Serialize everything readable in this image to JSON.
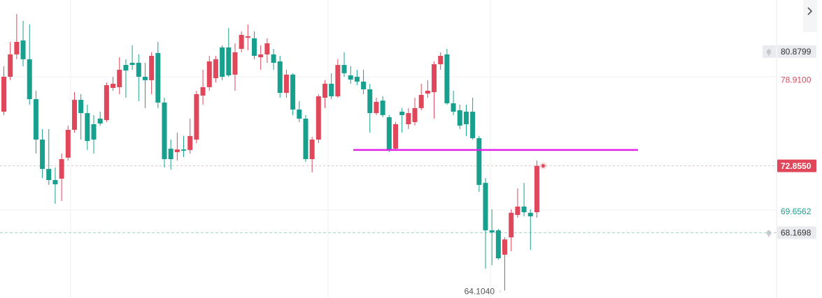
{
  "chart_data": {
    "type": "candlestick",
    "ylim": [
      63.58,
      84.5
    ],
    "up_color": "#e0475a",
    "down_color": "#17a08e",
    "candles": [
      [
        76.66,
        79.85,
        76.42,
        79.11
      ],
      [
        79.11,
        81.56,
        78.87,
        80.68
      ],
      [
        80.68,
        83.52,
        80.34,
        81.56
      ],
      [
        81.66,
        83.03,
        79.85,
        80.34
      ],
      [
        80.34,
        82.79,
        77.15,
        77.54
      ],
      [
        77.54,
        78.13,
        73.72,
        74.7
      ],
      [
        74.7,
        75.44,
        72.0,
        72.64
      ],
      [
        72.64,
        75.44,
        71.52,
        71.86
      ],
      [
        71.86,
        72.74,
        70.19,
        71.56
      ],
      [
        71.96,
        73.72,
        70.39,
        73.33
      ],
      [
        73.43,
        75.68,
        73.23,
        75.39
      ],
      [
        75.39,
        78.03,
        75.19,
        77.49
      ],
      [
        77.49,
        77.89,
        74.7,
        76.56
      ],
      [
        76.56,
        77.15,
        73.97,
        74.6
      ],
      [
        75.78,
        76.42,
        73.72,
        74.7
      ],
      [
        76.17,
        76.66,
        75.68,
        75.83
      ],
      [
        76.07,
        78.72,
        75.93,
        78.52
      ],
      [
        78.33,
        79.11,
        78.13,
        78.62
      ],
      [
        78.38,
        80.48,
        77.89,
        79.6
      ],
      [
        79.94,
        80.34,
        77.64,
        79.55
      ],
      [
        80.09,
        81.32,
        79.6,
        79.94
      ],
      [
        80.09,
        80.68,
        77.4,
        79.11
      ],
      [
        79.11,
        80.09,
        76.91,
        78.87
      ],
      [
        78.87,
        80.83,
        77.89,
        80.58
      ],
      [
        80.78,
        81.56,
        76.91,
        77.3
      ],
      [
        77.3,
        77.64,
        72.74,
        73.33
      ],
      [
        74.06,
        74.7,
        72.59,
        73.33
      ],
      [
        73.82,
        75.19,
        73.23,
        74.01
      ],
      [
        74.01,
        74.95,
        73.48,
        73.92
      ],
      [
        73.97,
        76.17,
        73.72,
        74.95
      ],
      [
        74.7,
        78.13,
        74.46,
        77.89
      ],
      [
        77.79,
        79.6,
        77.15,
        78.38
      ],
      [
        78.38,
        80.58,
        78.13,
        80.19
      ],
      [
        79.01,
        80.58,
        78.72,
        80.34
      ],
      [
        81.17,
        81.32,
        78.87,
        79.11
      ],
      [
        81.17,
        82.54,
        79.11,
        79.21
      ],
      [
        79.26,
        81.46,
        78.13,
        80.83
      ],
      [
        81.07,
        82.3,
        80.83,
        82.05
      ],
      [
        81.85,
        82.79,
        80.97,
        81.95
      ],
      [
        81.81,
        82.3,
        80.34,
        80.58
      ],
      [
        80.48,
        81.32,
        79.6,
        80.68
      ],
      [
        80.68,
        81.81,
        80.09,
        81.46
      ],
      [
        80.68,
        81.07,
        79.6,
        80.09
      ],
      [
        80.19,
        80.58,
        77.64,
        77.98
      ],
      [
        77.98,
        79.6,
        77.64,
        79.26
      ],
      [
        79.26,
        79.36,
        76.42,
        76.81
      ],
      [
        76.81,
        77.4,
        75.93,
        76.17
      ],
      [
        76.17,
        76.42,
        73.13,
        73.33
      ],
      [
        73.33,
        74.9,
        72.4,
        74.7
      ],
      [
        74.7,
        77.89,
        74.46,
        77.74
      ],
      [
        77.64,
        78.87,
        76.91,
        78.62
      ],
      [
        78.62,
        79.36,
        77.54,
        77.74
      ],
      [
        77.74,
        80.34,
        77.64,
        79.94
      ],
      [
        79.94,
        80.83,
        79.11,
        79.36
      ],
      [
        79.21,
        79.85,
        78.62,
        78.91
      ],
      [
        79.11,
        79.6,
        78.52,
        78.77
      ],
      [
        78.77,
        79.6,
        77.89,
        78.23
      ],
      [
        78.23,
        78.62,
        75.19,
        76.56
      ],
      [
        76.56,
        77.64,
        76.42,
        77.35
      ],
      [
        77.44,
        77.74,
        76.27,
        76.42
      ],
      [
        76.27,
        76.42,
        73.82,
        73.97
      ],
      [
        74.06,
        75.93,
        73.92,
        75.78
      ],
      [
        76.66,
        76.91,
        75.19,
        76.42
      ],
      [
        75.78,
        76.91,
        75.44,
        76.56
      ],
      [
        75.93,
        77.64,
        75.68,
        76.91
      ],
      [
        76.91,
        78.62,
        76.76,
        77.84
      ],
      [
        77.93,
        78.87,
        77.64,
        78.13
      ],
      [
        78.03,
        80.19,
        76.17,
        79.99
      ],
      [
        79.99,
        80.83,
        79.6,
        80.58
      ],
      [
        80.68,
        81.07,
        77.15,
        77.25
      ],
      [
        77.25,
        78.13,
        76.42,
        76.66
      ],
      [
        76.76,
        77.15,
        75.44,
        75.68
      ],
      [
        76.66,
        77.15,
        74.95,
        75.78
      ],
      [
        76.66,
        77.64,
        74.7,
        74.8
      ],
      [
        74.8,
        74.95,
        71.03,
        71.52
      ],
      [
        71.66,
        72.0,
        65.64,
        68.33
      ],
      [
        68.33,
        69.8,
        65.88,
        68.18
      ],
      [
        68.33,
        68.43,
        66.27,
        66.37
      ],
      [
        66.62,
        67.84,
        64.1,
        67.69
      ],
      [
        67.84,
        69.8,
        66.86,
        69.56
      ],
      [
        69.41,
        71.27,
        69.21,
        70.0
      ],
      [
        70.0,
        71.66,
        69.31,
        69.6
      ],
      [
        69.56,
        69.8,
        66.96,
        69.31
      ],
      [
        69.6,
        73.23,
        69.21,
        72.855
      ]
    ],
    "price_labels": [
      80.8799,
      {
        "value": 78.91,
        "label": "78.9100"
      },
      {
        "value": 72.855,
        "label": "72.8550"
      },
      69.6562,
      68.1698,
      {
        "value": 64.104,
        "label": "64.1040"
      }
    ],
    "drawn_line": {
      "value": 73.97,
      "color": "#e022e6"
    }
  }
}
